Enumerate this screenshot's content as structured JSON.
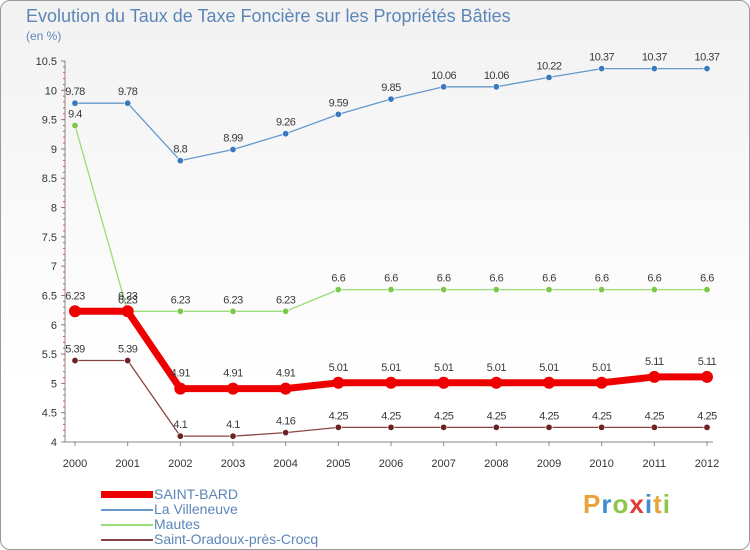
{
  "title": "Evolution du Taux de Taxe Foncière sur les Propriétés Bâties",
  "subtitle": "(en %)",
  "chart_data": {
    "type": "line",
    "title": "Evolution du Taux de Taxe Foncière sur les Propriétés Bâties",
    "ylabel": "(en %)",
    "xlabel": "",
    "ylim": [
      4,
      10.5
    ],
    "yticks": [
      "4",
      "4.5",
      "5",
      "5.5",
      "6",
      "6.5",
      "7",
      "7.5",
      "8",
      "8.5",
      "9",
      "9.5",
      "10",
      "10.5"
    ],
    "categories": [
      "2000",
      "2001",
      "2002",
      "2003",
      "2004",
      "2005",
      "2006",
      "2007",
      "2008",
      "2009",
      "2010",
      "2011",
      "2012"
    ],
    "series": [
      {
        "name": "La Villeneuve",
        "color": "#6699cc",
        "marker": "#3b79bd",
        "values": [
          9.78,
          9.78,
          8.8,
          8.99,
          9.26,
          9.59,
          9.85,
          10.06,
          10.06,
          10.22,
          10.37,
          10.37,
          10.37
        ],
        "labels": [
          "9.78",
          "9.78",
          "8.8",
          "8.99",
          "9.26",
          "9.59",
          "9.85",
          "10.06",
          "10.06",
          "10.22",
          "10.37",
          "10.37",
          "10.37"
        ]
      },
      {
        "name": "Mautes",
        "color": "#99dd77",
        "marker": "#7cc94a",
        "values": [
          9.4,
          6.23,
          6.23,
          6.23,
          6.23,
          6.6,
          6.6,
          6.6,
          6.6,
          6.6,
          6.6,
          6.6,
          6.6
        ],
        "labels": [
          "9.4",
          "6.23",
          "6.23",
          "6.23",
          "6.23",
          "6.6",
          "6.6",
          "6.6",
          "6.6",
          "6.6",
          "6.6",
          "6.6",
          "6.6"
        ]
      },
      {
        "name": "Saint-Oradoux-près-Crocq",
        "color": "#884444",
        "marker": "#6b2222",
        "values": [
          5.39,
          5.39,
          4.1,
          4.1,
          4.16,
          4.25,
          4.25,
          4.25,
          4.25,
          4.25,
          4.25,
          4.25,
          4.25
        ],
        "labels": [
          "5.39",
          "5.39",
          "4.1",
          "4.1",
          "4.16",
          "4.25",
          "4.25",
          "4.25",
          "4.25",
          "4.25",
          "4.25",
          "4.25",
          "4.25"
        ]
      },
      {
        "name": "SAINT-BARD",
        "color": "#ee0000",
        "marker": "#ee0000",
        "values": [
          6.23,
          6.23,
          4.91,
          4.91,
          4.91,
          5.01,
          5.01,
          5.01,
          5.01,
          5.01,
          5.01,
          5.11,
          5.11
        ],
        "labels": [
          "6.23",
          "6.23",
          "4.91",
          "4.91",
          "4.91",
          "5.01",
          "5.01",
          "5.01",
          "5.01",
          "5.01",
          "5.01",
          "5.11",
          "5.11"
        ]
      }
    ]
  },
  "legend": [
    {
      "label": "SAINT-BARD",
      "color": "#ee0000"
    },
    {
      "label": "La Villeneuve",
      "color": "#6699cc"
    },
    {
      "label": "Mautes",
      "color": "#99dd77"
    },
    {
      "label": "Saint-Oradoux-près-Crocq",
      "color": "#884444"
    }
  ],
  "logo": {
    "letters": [
      "P",
      "r",
      "o",
      "x",
      "i",
      "t",
      "i"
    ],
    "colors": [
      "#e8a33a",
      "#3e8fd1",
      "#8cc64a",
      "#e03a3a",
      "#3e8fd1",
      "#e8a33a",
      "#8cc64a"
    ]
  }
}
